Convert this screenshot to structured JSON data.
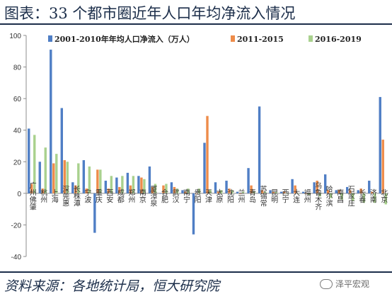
{
  "header": {
    "title": "图表：33 个都市圈近年人口年均净流入情况"
  },
  "footer": {
    "source": "资料来源：各地统计局，恒大研究院"
  },
  "watermark": {
    "text": "泽平宏观",
    "icon": "wechat-icon"
  },
  "chart_data": {
    "type": "bar",
    "title": "",
    "xlabel": "",
    "ylabel": "",
    "ylim": [
      -40,
      100
    ],
    "yticks": [
      -40,
      -20,
      0,
      20,
      40,
      60,
      80,
      100
    ],
    "grid": false,
    "legend_position": "top",
    "categories": [
      "广州佛肇",
      "杭州",
      "上海",
      "深莞惠",
      "长株潭",
      "宁波",
      "重庆",
      "西安",
      "成都",
      "郑州",
      "南京",
      "厦漳泉",
      "合肥",
      "武汉",
      "南宁",
      "贵阳",
      "天津",
      "太原",
      "沈阳",
      "兰州",
      "青岛",
      "苏锡常",
      "昆明",
      "西宁",
      "大连",
      "福州",
      "乌鲁木齐",
      "哈尔滨",
      "南昌",
      "石家庄",
      "长春",
      "济南",
      "北京"
    ],
    "series": [
      {
        "name": "2001-2010年年均人口净流入（万人）",
        "color": "#4f7ec5",
        "values": [
          41,
          20,
          91,
          54,
          7,
          21,
          -25,
          8,
          10,
          13,
          11,
          17,
          0,
          7,
          2,
          -26,
          32,
          7,
          8,
          1,
          16,
          55,
          2,
          1,
          9,
          1,
          7,
          12,
          2,
          4,
          2,
          8,
          61
        ]
      },
      {
        "name": "2011-2015",
        "color": "#ee8c4a",
        "values": [
          6,
          3,
          19,
          21,
          5,
          3,
          15,
          3,
          4,
          5,
          10,
          4,
          5,
          4,
          1,
          0,
          49,
          1,
          3,
          0,
          5,
          2,
          1,
          1,
          5,
          0,
          8,
          2,
          2,
          2,
          3,
          1,
          34
        ]
      },
      {
        "name": "2016-2019",
        "color": "#a9d18e",
        "values": [
          37,
          29,
          25,
          20,
          19,
          17,
          15,
          11,
          11,
          11,
          9,
          6,
          6,
          3,
          3,
          3,
          2,
          2,
          2,
          1,
          1,
          1,
          1,
          0,
          0,
          -1,
          -2,
          -3,
          -4,
          -5,
          -6,
          -6,
          -7
        ]
      }
    ]
  }
}
